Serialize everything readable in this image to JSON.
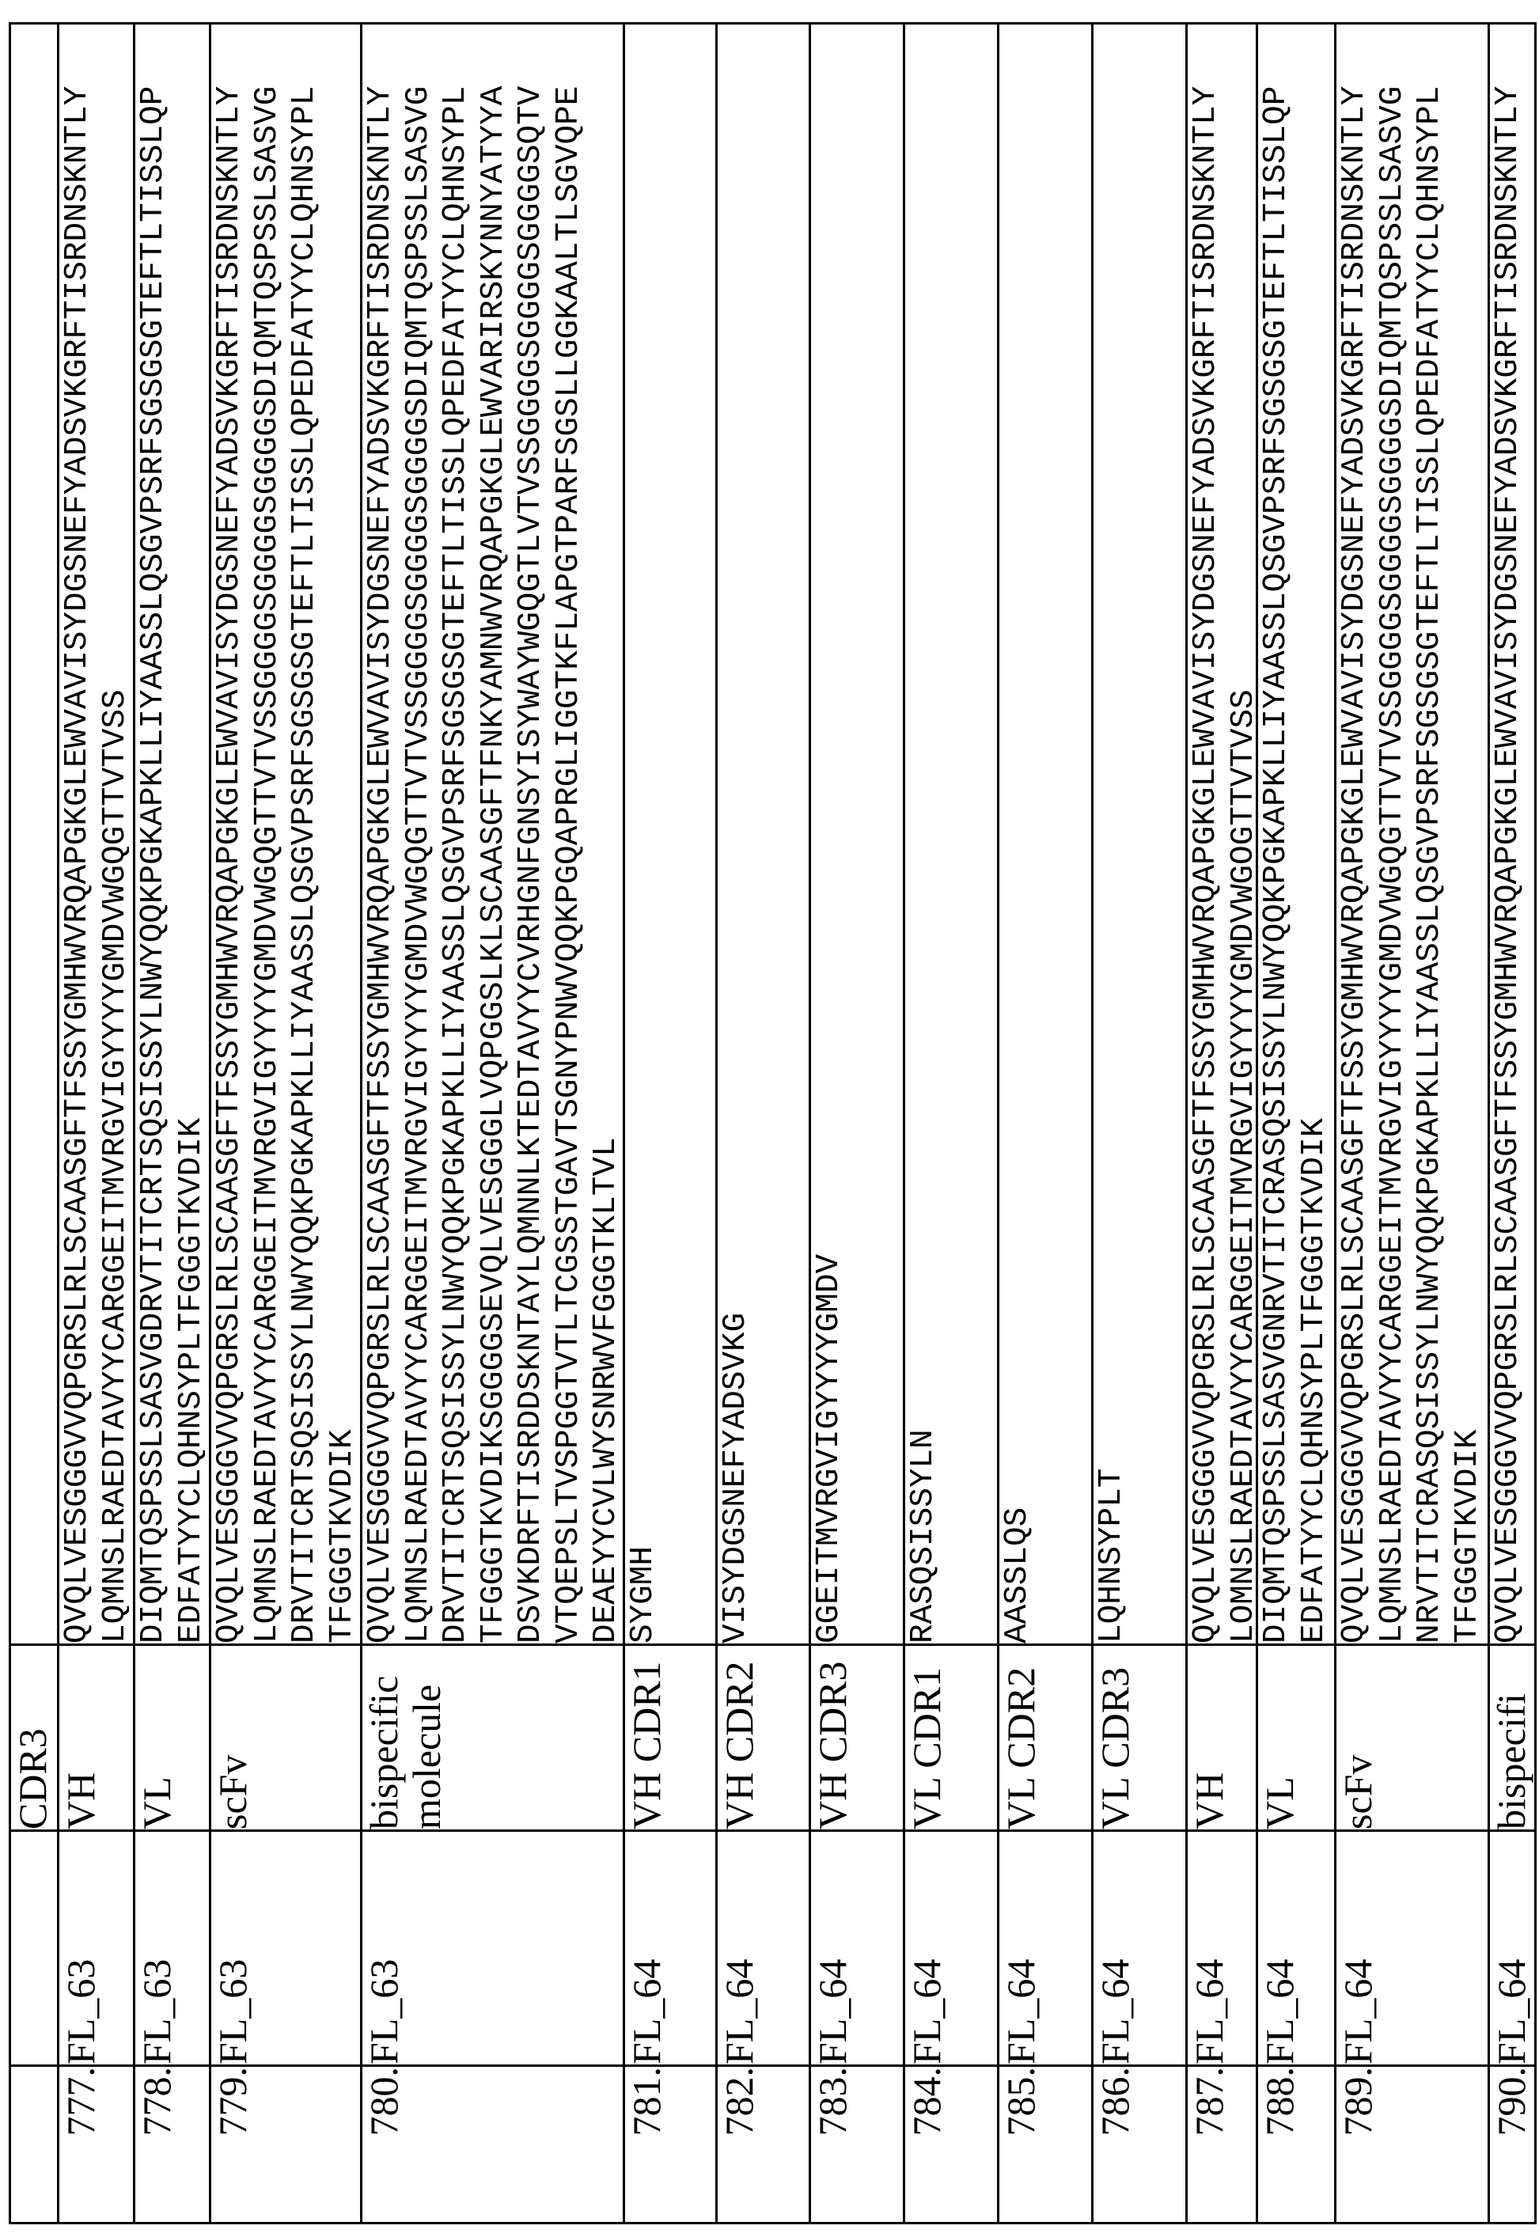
{
  "header_row": {
    "number": "",
    "id": "",
    "type": "CDR3",
    "sequence": ""
  },
  "rows": [
    {
      "number": "777.",
      "id": "FL_63",
      "type": "VH",
      "sequence": "QVQLVESGGGVVQPGRSLRLSCAASGFTFSSYGMHWVRQAPGKGLEWVAVISYDGSNEFYADSVKGRFTISRDNSKNTLYLQMNSLRAEDTAVYYCARGGEITMVRGVIGYYYYGMDVWGQGTTVTVSS"
    },
    {
      "number": "778.",
      "id": "FL_63",
      "type": "VL",
      "sequence": "DIQMTQSPSSLSASVGDRVTITCRTSQSISSYLNWYQQKPGKAPKLLIYAASSLQSGVPSRFSGSGSGTEFTLTISSLQPEDFATYYCLQHNSYPLTFGGGTKVDIK"
    },
    {
      "number": "779.",
      "id": "FL_63",
      "type": "scFv",
      "sequence": "QVQLVESGGGVVQPGRSLRLSCAASGFTFSSYGMHWVRQAPGKGLEWVAVISYDGSNEFYADSVKGRFTISRDNSKNTLYLQMNSLRAEDTAVYYCARGGEITMVRGVIGYYYYGMDVWGQGTTVTVSSGGGGSGGGGSGGGGSDIQMTQSPSSLSASVGDRVTITCRTSQSISSYLNWYQQKPGKAPKLLIYAASSLQSGVPSRFSGSGSGTEFTLTISSLQPEDFATYYCLQHNSYPLTFGGGTKVDIK"
    },
    {
      "number": "780.",
      "id": "FL_63",
      "type": "bispecific molecule",
      "sequence": "QVQLVESGGGVVQPGRSLRLSCAASGFTFSSYGMHWVRQAPGKGLEWVAVISYDGSNEFYADSVKGRFTISRDNSKNTLYLQMNSLRAEDTAVYYCARGGEITMVRGVIGYYYYGMDVWGQGTTVTVSSGGGGSGGGGSGGGGSDIQMTQSPSSLSASVGDRVTITCRTSQSISSYLNWYQQKPGKAPKLLIYAASSLQSGVPSRFSGSGSGTEFTLTISSLQPEDFATYYCLQHNSYPLTFGGGTKVDIKSGGGGSEVQLVESGGGLVQPGGSLKLSCAASGFTFNKYAMNWVRQAPGKGLEWVARIRSKYNNYATYYADSVKDRFTISRDDSKNTAYLQMNNLKTEDTAVYYCVRHGNFGNSYISYWAYWGQGTLVTVSSGGGGSGGGGSGGGGSQTVVTQEPSLTVSPGGTVTLTCGSSTGAVTSGNYPNWVQQKPGQAPRGLIGGTKFLAPGTPARFSGSLLGGKAALTLSGVQPEDEAEYYCVLWYSNRWVFGGGTKLTVL"
    },
    {
      "number": "781.",
      "id": "FL_64",
      "type": "VH CDR1",
      "sequence": "SYGMH"
    },
    {
      "number": "782.",
      "id": "FL_64",
      "type": "VH CDR2",
      "sequence": "VISYDGSNEFYADSVKG"
    },
    {
      "number": "783.",
      "id": "FL_64",
      "type": "VH CDR3",
      "sequence": "GGEITMVRGVIGYYYYGMDV"
    },
    {
      "number": "784.",
      "id": "FL_64",
      "type": "VL CDR1",
      "sequence": "RASQSISSYLN"
    },
    {
      "number": "785.",
      "id": "FL_64",
      "type": "VL CDR2",
      "sequence": "AASSLQS"
    },
    {
      "number": "786.",
      "id": "FL_64",
      "type": "VL CDR3",
      "sequence": "LQHNSYPLT"
    },
    {
      "number": "787.",
      "id": "FL_64",
      "type": "VH",
      "sequence": "QVQLVESGGGVVQPGRSLRLSCAASGFTFSSYGMHWVRQAPGKGLEWVAVISYDGSNEFYADSVKGRFTISRDNSKNTLYLQMNSLRAEDTAVYYCARGGEITMVRGVIGYYYYGMDVWGQGTTVTVSS"
    },
    {
      "number": "788.",
      "id": "FL_64",
      "type": "VL",
      "sequence": "DIQMTQSPSSLSASVGNRVTITCRASQSISSYLNWYQQKPGKAPKLLIYAASSLQSGVPSRFSGSGSGTEFTLTISSLQPEDFATYYCLQHNSYPLTFGGGTKVDIK"
    },
    {
      "number": "789.",
      "id": "FL_64",
      "type": "scFv",
      "sequence": "QVQLVESGGGVVQPGRSLRLSCAASGFTFSSYGMHWVRQAPGKGLEWVAVISYDGSNEFYADSVKGRFTISRDNSKNTLYLQMNSLRAEDTAVYYCARGGEITMVRGVIGYYYYGMDVWGQGTTVTVSSGGGGSGGGGSGGGGSDIQMTQSPSSLSASVGNRVTITCRASQSISSYLNWYQQKPGKAPKLLIYAASSLQSGVPSRFSGSGSGTEFTLTISSLQPEDFATYYCLQHNSYPLTFGGGTKVDIK"
    },
    {
      "number": "790.",
      "id": "FL_64",
      "type": "bispecifi",
      "sequence": "QVQLVESGGGVVQPGRSLRLSCAASGFTFSSYGMHWVRQAPGKGLEWVAVISYDGSNEFYADSVKGRFTISRDNSKNTLY"
    }
  ]
}
